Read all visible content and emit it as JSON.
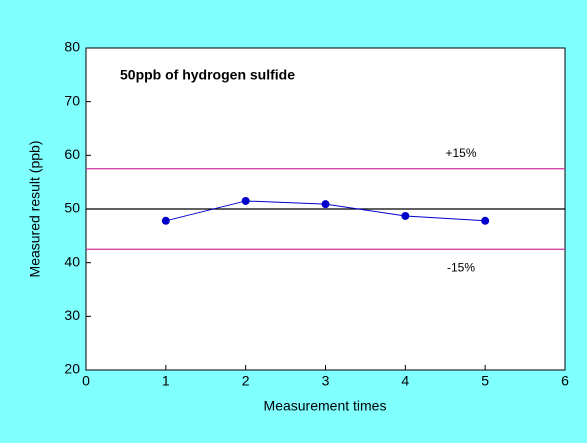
{
  "chart_data": {
    "type": "line",
    "title": "50ppb of hydrogen sulfide",
    "x_label": "Measurement times",
    "y_label": "Measured result (ppb)",
    "x": [
      1,
      2,
      3,
      4,
      5
    ],
    "series": [
      {
        "name": "Measured",
        "color": "#0000cc",
        "values": [
          47.8,
          51.5,
          50.9,
          48.7,
          47.8
        ]
      }
    ],
    "reference_lines": [
      {
        "value": 57.5,
        "label": "+15%",
        "color": "#cc3399"
      },
      {
        "value": 50,
        "color": "#000000"
      },
      {
        "value": 42.5,
        "label": "-15%",
        "color": "#cc3399"
      }
    ],
    "xlim": [
      0,
      6
    ],
    "xticks": [
      0,
      1,
      2,
      3,
      4,
      5,
      6
    ],
    "ylim": [
      20,
      80
    ],
    "yticks": [
      20,
      30,
      40,
      50,
      60,
      70,
      80
    ],
    "background": "#80ffff",
    "plot_background": "#ffffff"
  }
}
